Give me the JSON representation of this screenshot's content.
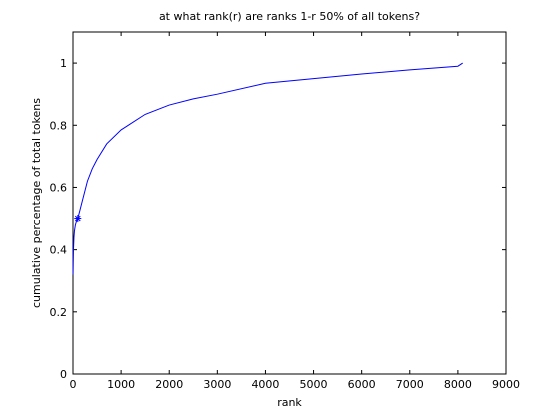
{
  "chart_data": {
    "type": "line",
    "title": "at what rank(r) are ranks 1-r 50% of all tokens?",
    "xlabel": "rank",
    "ylabel": "cumulative percentage of total tokens",
    "xlim": [
      0,
      9000
    ],
    "ylim": [
      0,
      1.1
    ],
    "xticks": [
      0,
      1000,
      2000,
      3000,
      4000,
      5000,
      6000,
      7000,
      8000,
      9000
    ],
    "yticks": [
      0,
      0.2,
      0.4,
      0.6,
      0.8,
      1
    ],
    "xtick_labels": [
      "0",
      "1000",
      "2000",
      "3000",
      "4000",
      "5000",
      "6000",
      "7000",
      "8000",
      "9000"
    ],
    "ytick_labels": [
      "0",
      "0.2",
      "0.4",
      "0.6",
      "0.8",
      "1"
    ],
    "grid": false,
    "line_color": "#0000ff",
    "series": [
      {
        "x": [
          1,
          5,
          10,
          20,
          30,
          50,
          70,
          100,
          150,
          200,
          300,
          400,
          500,
          700,
          1000,
          1500,
          2000,
          2500,
          3000,
          4000,
          5000,
          6000,
          7000,
          8000,
          8100
        ],
        "y": [
          0.32,
          0.36,
          0.4,
          0.44,
          0.46,
          0.48,
          0.49,
          0.5,
          0.53,
          0.56,
          0.62,
          0.66,
          0.69,
          0.74,
          0.785,
          0.835,
          0.865,
          0.885,
          0.9,
          0.935,
          0.95,
          0.965,
          0.978,
          0.99,
          1.0
        ]
      }
    ],
    "marker": {
      "x": 100,
      "y": 0.5,
      "symbol": "*"
    }
  }
}
